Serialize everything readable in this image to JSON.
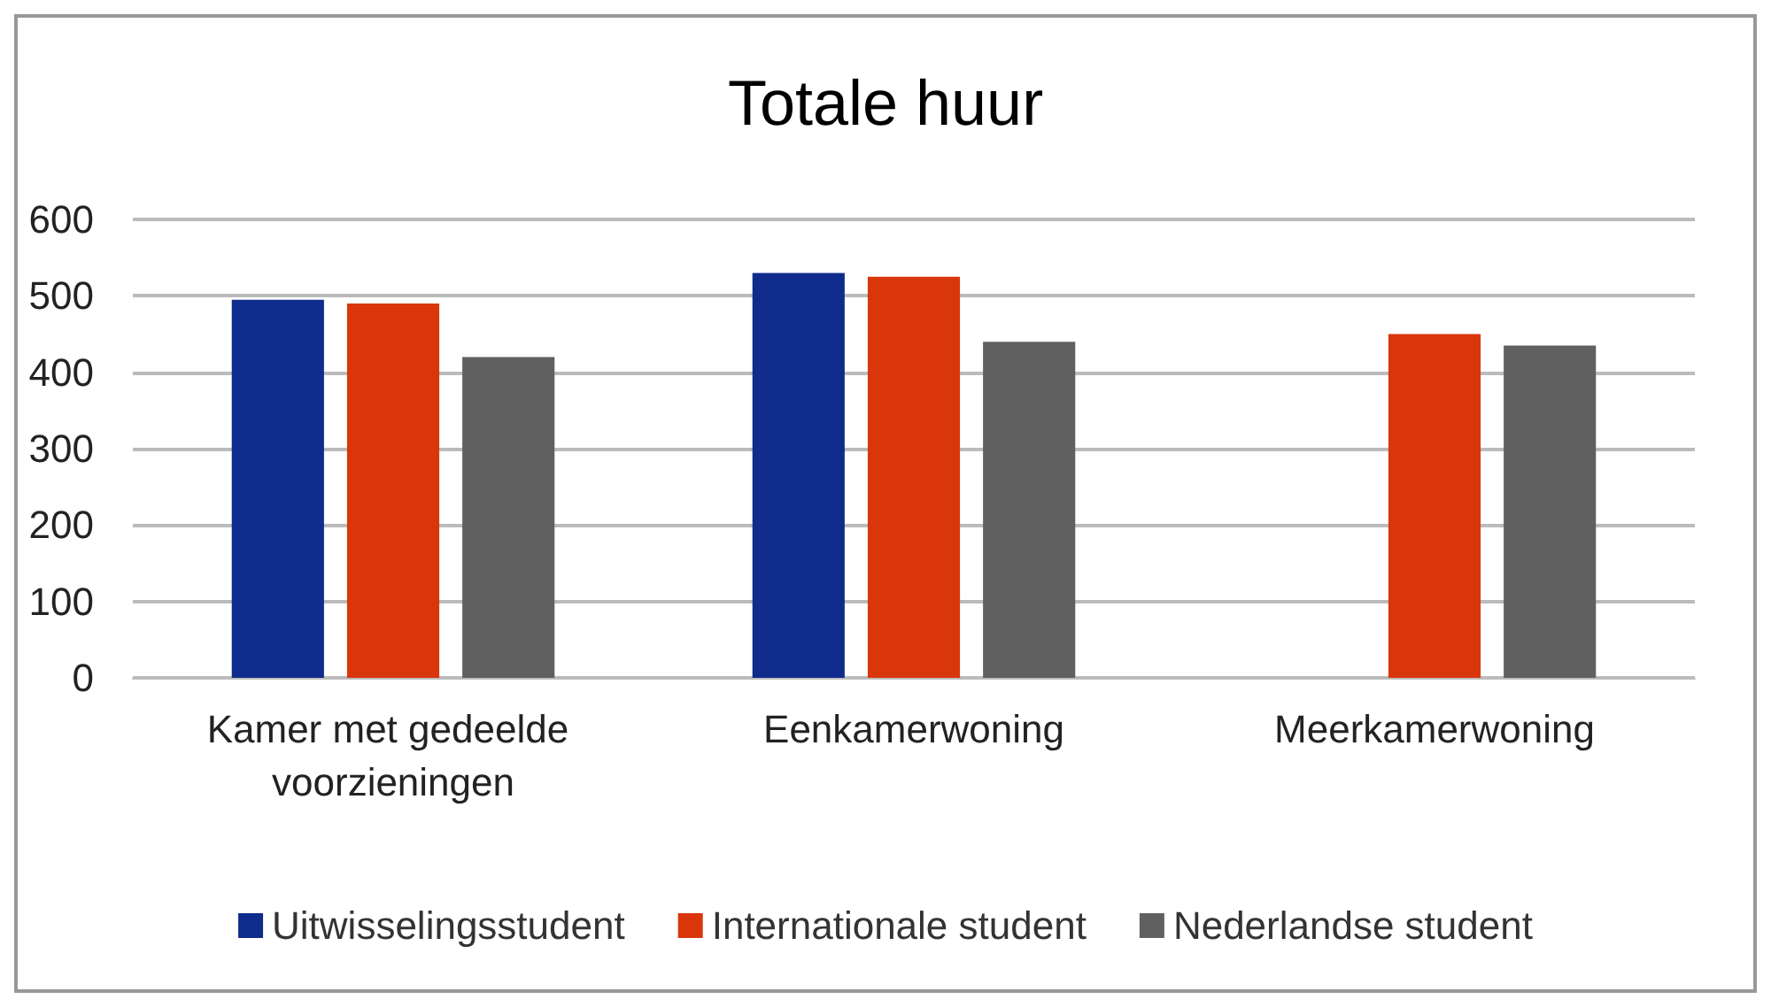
{
  "chart_data": {
    "type": "bar",
    "title": "Totale huur",
    "categories": [
      "Kamer met gedeelde voorzieningen",
      "Eenkamerwoning",
      "Meerkamerwoning"
    ],
    "series": [
      {
        "name": "Uitwisselingsstudent",
        "color": "#0f2b8c",
        "values": [
          495,
          530,
          null
        ]
      },
      {
        "name": "Internationale student",
        "color": "#d9360b",
        "values": [
          490,
          525,
          450
        ]
      },
      {
        "name": "Nederlandse student",
        "color": "#606060",
        "values": [
          420,
          440,
          435
        ]
      }
    ],
    "ylim": [
      0,
      600
    ],
    "yticks": [
      0,
      100,
      200,
      300,
      400,
      500,
      600
    ],
    "grid": "y",
    "legend": "bottom"
  }
}
